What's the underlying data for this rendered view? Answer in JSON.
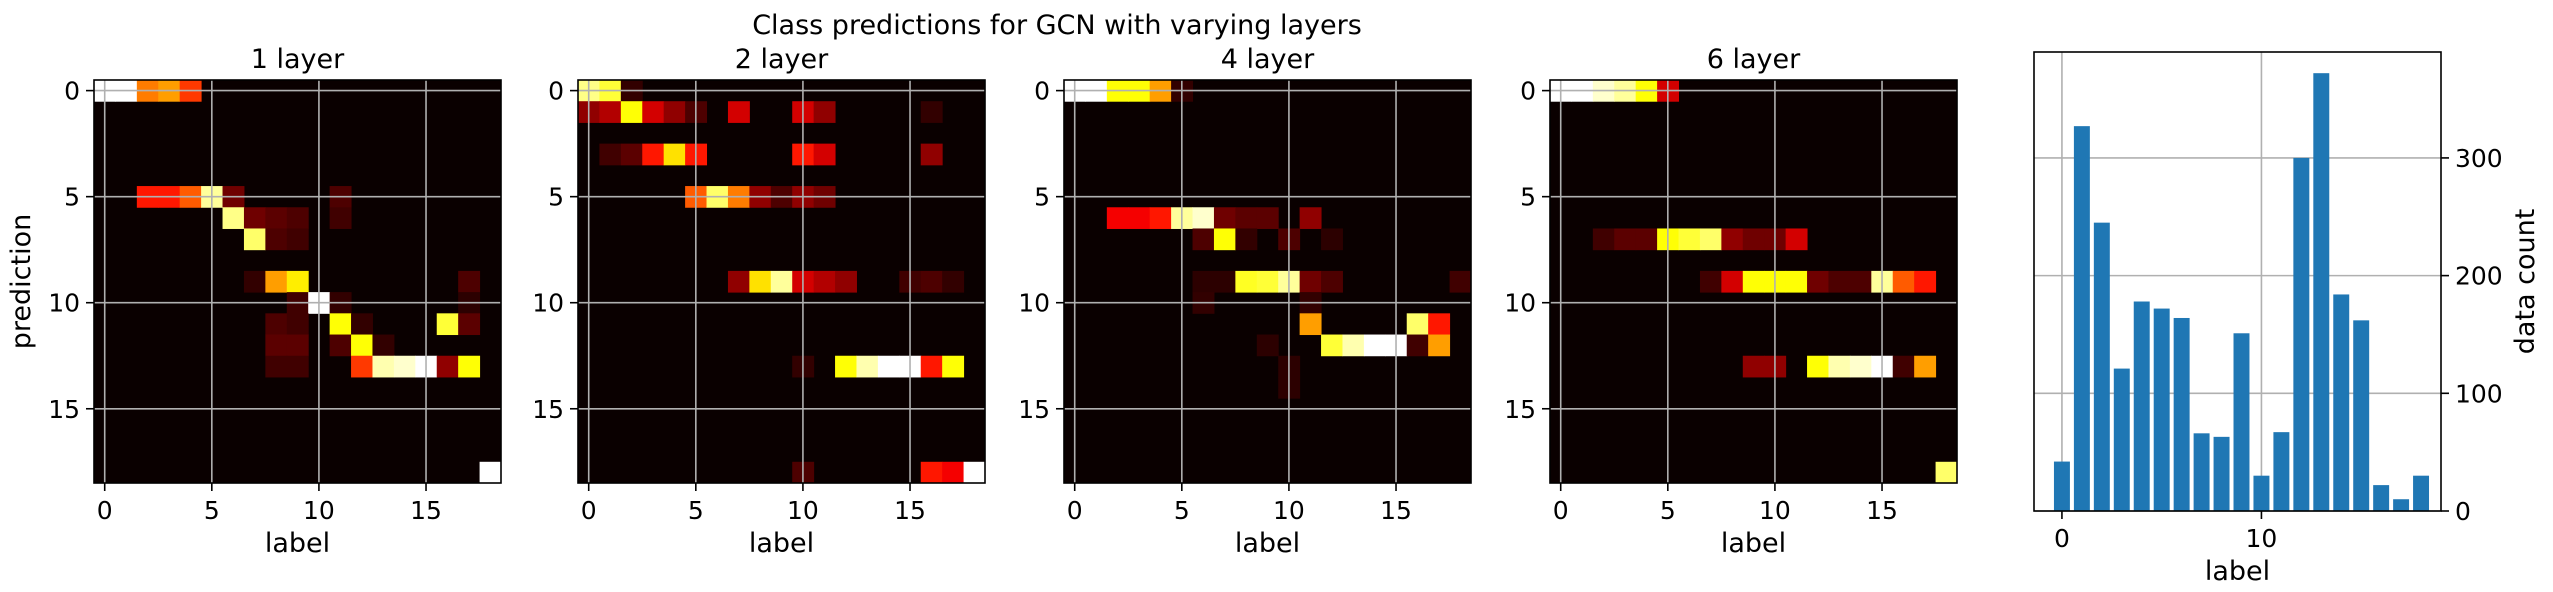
{
  "figure": {
    "suptitle": "Class predictions for GCN with varying layers"
  },
  "chart_data": [
    {
      "type": "heatmap",
      "title": "1 layer",
      "xlabel": "label",
      "ylabel": "prediction",
      "x_ticks": [
        0,
        5,
        10,
        15
      ],
      "y_ticks": [
        0,
        5,
        10,
        15
      ],
      "n_classes": 19,
      "colormap": "hot",
      "grid": true,
      "cells": [
        [
          0,
          0,
          1.0
        ],
        [
          0,
          1,
          1.0
        ],
        [
          0,
          2,
          0.55
        ],
        [
          0,
          3,
          0.6
        ],
        [
          0,
          4,
          0.45
        ],
        [
          5,
          2,
          0.4
        ],
        [
          5,
          3,
          0.4
        ],
        [
          5,
          4,
          0.5
        ],
        [
          5,
          5,
          0.9
        ],
        [
          5,
          6,
          0.15
        ],
        [
          5,
          11,
          0.1
        ],
        [
          6,
          6,
          0.88
        ],
        [
          6,
          7,
          0.15
        ],
        [
          6,
          8,
          0.12
        ],
        [
          6,
          9,
          0.1
        ],
        [
          6,
          11,
          0.08
        ],
        [
          7,
          7,
          0.85
        ],
        [
          7,
          8,
          0.1
        ],
        [
          7,
          9,
          0.08
        ],
        [
          9,
          7,
          0.06
        ],
        [
          9,
          8,
          0.6
        ],
        [
          9,
          9,
          0.72
        ],
        [
          9,
          17,
          0.1
        ],
        [
          10,
          9,
          0.08
        ],
        [
          10,
          10,
          1.0
        ],
        [
          10,
          11,
          0.06
        ],
        [
          10,
          17,
          0.05
        ],
        [
          11,
          8,
          0.1
        ],
        [
          11,
          9,
          0.08
        ],
        [
          11,
          11,
          0.75
        ],
        [
          11,
          12,
          0.06
        ],
        [
          11,
          16,
          0.8
        ],
        [
          11,
          17,
          0.12
        ],
        [
          12,
          8,
          0.12
        ],
        [
          12,
          9,
          0.12
        ],
        [
          12,
          11,
          0.1
        ],
        [
          12,
          12,
          0.75
        ],
        [
          12,
          13,
          0.06
        ],
        [
          13,
          8,
          0.08
        ],
        [
          13,
          9,
          0.08
        ],
        [
          13,
          12,
          0.45
        ],
        [
          13,
          13,
          0.92
        ],
        [
          13,
          14,
          0.95
        ],
        [
          13,
          15,
          1.0
        ],
        [
          13,
          16,
          0.2
        ],
        [
          13,
          17,
          0.75
        ],
        [
          18,
          18,
          1.0
        ]
      ]
    },
    {
      "type": "heatmap",
      "title": "2 layer",
      "xlabel": "label",
      "ylabel": "",
      "x_ticks": [
        0,
        5,
        10,
        15
      ],
      "y_ticks": [
        0,
        5,
        10,
        15
      ],
      "n_classes": 19,
      "colormap": "hot",
      "grid": true,
      "cells": [
        [
          0,
          0,
          0.88
        ],
        [
          0,
          1,
          0.8
        ],
        [
          0,
          2,
          0.06
        ],
        [
          1,
          0,
          0.2
        ],
        [
          1,
          1,
          0.25
        ],
        [
          1,
          2,
          0.75
        ],
        [
          1,
          3,
          0.3
        ],
        [
          1,
          4,
          0.2
        ],
        [
          1,
          5,
          0.1
        ],
        [
          1,
          7,
          0.3
        ],
        [
          1,
          10,
          0.3
        ],
        [
          1,
          11,
          0.2
        ],
        [
          1,
          16,
          0.06
        ],
        [
          3,
          1,
          0.08
        ],
        [
          3,
          2,
          0.12
        ],
        [
          3,
          3,
          0.4
        ],
        [
          3,
          4,
          0.7
        ],
        [
          3,
          5,
          0.4
        ],
        [
          3,
          10,
          0.4
        ],
        [
          3,
          11,
          0.3
        ],
        [
          3,
          16,
          0.2
        ],
        [
          5,
          5,
          0.5
        ],
        [
          5,
          6,
          0.85
        ],
        [
          5,
          7,
          0.55
        ],
        [
          5,
          8,
          0.2
        ],
        [
          5,
          9,
          0.1
        ],
        [
          5,
          10,
          0.2
        ],
        [
          5,
          11,
          0.15
        ],
        [
          9,
          7,
          0.2
        ],
        [
          9,
          8,
          0.7
        ],
        [
          9,
          9,
          0.9
        ],
        [
          9,
          10,
          0.3
        ],
        [
          9,
          11,
          0.25
        ],
        [
          9,
          12,
          0.2
        ],
        [
          9,
          15,
          0.08
        ],
        [
          9,
          16,
          0.1
        ],
        [
          9,
          17,
          0.06
        ],
        [
          13,
          10,
          0.06
        ],
        [
          13,
          12,
          0.75
        ],
        [
          13,
          13,
          0.92
        ],
        [
          13,
          14,
          1.0
        ],
        [
          13,
          15,
          1.0
        ],
        [
          13,
          16,
          0.4
        ],
        [
          13,
          17,
          0.75
        ],
        [
          18,
          10,
          0.1
        ],
        [
          18,
          16,
          0.4
        ],
        [
          18,
          17,
          0.35
        ],
        [
          18,
          18,
          1.0
        ]
      ]
    },
    {
      "type": "heatmap",
      "title": "4 layer",
      "xlabel": "label",
      "ylabel": "",
      "x_ticks": [
        0,
        5,
        10,
        15
      ],
      "y_ticks": [
        0,
        5,
        10,
        15
      ],
      "n_classes": 19,
      "colormap": "hot",
      "grid": true,
      "cells": [
        [
          0,
          0,
          1.0
        ],
        [
          0,
          1,
          1.0
        ],
        [
          0,
          2,
          0.75
        ],
        [
          0,
          3,
          0.75
        ],
        [
          0,
          4,
          0.6
        ],
        [
          0,
          5,
          0.06
        ],
        [
          6,
          2,
          0.35
        ],
        [
          6,
          3,
          0.35
        ],
        [
          6,
          4,
          0.4
        ],
        [
          6,
          5,
          0.9
        ],
        [
          6,
          6,
          0.95
        ],
        [
          6,
          7,
          0.15
        ],
        [
          6,
          8,
          0.12
        ],
        [
          6,
          9,
          0.12
        ],
        [
          6,
          11,
          0.2
        ],
        [
          7,
          6,
          0.1
        ],
        [
          7,
          7,
          0.75
        ],
        [
          7,
          8,
          0.06
        ],
        [
          7,
          10,
          0.1
        ],
        [
          7,
          12,
          0.05
        ],
        [
          9,
          6,
          0.05
        ],
        [
          9,
          7,
          0.05
        ],
        [
          9,
          8,
          0.78
        ],
        [
          9,
          9,
          0.8
        ],
        [
          9,
          10,
          0.9
        ],
        [
          9,
          11,
          0.15
        ],
        [
          9,
          12,
          0.1
        ],
        [
          9,
          18,
          0.08
        ],
        [
          10,
          6,
          0.06
        ],
        [
          10,
          11,
          0.06
        ],
        [
          11,
          11,
          0.6
        ],
        [
          11,
          16,
          0.85
        ],
        [
          11,
          17,
          0.4
        ],
        [
          12,
          9,
          0.05
        ],
        [
          12,
          12,
          0.8
        ],
        [
          12,
          13,
          0.92
        ],
        [
          12,
          14,
          1.0
        ],
        [
          12,
          15,
          1.0
        ],
        [
          12,
          16,
          0.08
        ],
        [
          12,
          17,
          0.6
        ],
        [
          13,
          10,
          0.05
        ],
        [
          14,
          10,
          0.05
        ]
      ]
    },
    {
      "type": "heatmap",
      "title": "6 layer",
      "xlabel": "label",
      "ylabel": "",
      "x_ticks": [
        0,
        5,
        10,
        15
      ],
      "y_ticks": [
        0,
        5,
        10,
        15
      ],
      "n_classes": 19,
      "colormap": "hot",
      "grid": true,
      "cells": [
        [
          0,
          0,
          1.0
        ],
        [
          0,
          1,
          1.0
        ],
        [
          0,
          2,
          0.95
        ],
        [
          0,
          3,
          0.9
        ],
        [
          0,
          4,
          0.75
        ],
        [
          0,
          5,
          0.3
        ],
        [
          7,
          2,
          0.08
        ],
        [
          7,
          3,
          0.12
        ],
        [
          7,
          4,
          0.12
        ],
        [
          7,
          5,
          0.75
        ],
        [
          7,
          6,
          0.8
        ],
        [
          7,
          7,
          0.85
        ],
        [
          7,
          8,
          0.2
        ],
        [
          7,
          9,
          0.15
        ],
        [
          7,
          10,
          0.15
        ],
        [
          7,
          11,
          0.3
        ],
        [
          9,
          7,
          0.08
        ],
        [
          9,
          8,
          0.3
        ],
        [
          9,
          9,
          0.75
        ],
        [
          9,
          10,
          0.75
        ],
        [
          9,
          11,
          0.75
        ],
        [
          9,
          12,
          0.15
        ],
        [
          9,
          13,
          0.1
        ],
        [
          9,
          14,
          0.1
        ],
        [
          9,
          15,
          0.9
        ],
        [
          9,
          16,
          0.5
        ],
        [
          9,
          17,
          0.4
        ],
        [
          13,
          9,
          0.2
        ],
        [
          13,
          10,
          0.2
        ],
        [
          13,
          12,
          0.75
        ],
        [
          13,
          13,
          0.92
        ],
        [
          13,
          14,
          0.95
        ],
        [
          13,
          15,
          1.0
        ],
        [
          13,
          16,
          0.08
        ],
        [
          13,
          17,
          0.6
        ],
        [
          18,
          18,
          0.85
        ]
      ]
    },
    {
      "type": "bar",
      "title": "",
      "xlabel": "label",
      "ylabel": "data count",
      "x": [
        0,
        1,
        2,
        3,
        4,
        5,
        6,
        7,
        8,
        9,
        10,
        11,
        12,
        13,
        14,
        15,
        16,
        17,
        18
      ],
      "values": [
        42,
        327,
        245,
        121,
        178,
        172,
        164,
        66,
        63,
        151,
        30,
        67,
        300,
        372,
        184,
        162,
        22,
        10,
        30
      ],
      "x_ticks": [
        0,
        10
      ],
      "y_ticks": [
        0,
        100,
        200,
        300
      ],
      "ylim": [
        0,
        390
      ],
      "xlim": [
        -1.4,
        19
      ],
      "yaxis_side": "right",
      "bar_color": "#1f77b4",
      "grid": true
    }
  ]
}
